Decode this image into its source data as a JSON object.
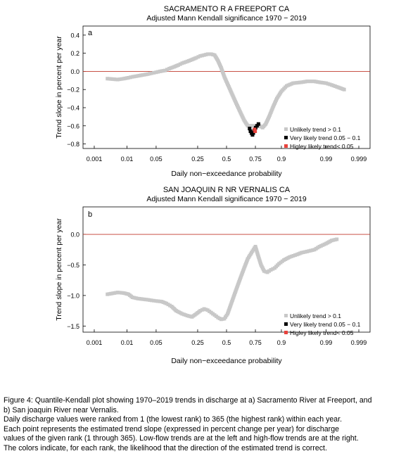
{
  "chart_data": [
    {
      "type": "scatter",
      "title": "SACRAMENTO R A FREEPORT CA",
      "subtitle": "Adjusted Mann Kendall significance  1970 − 2019",
      "panel_label": "a",
      "xlabel": "Daily non−exceedance probability",
      "ylabel": "Trend slope in percent per year",
      "x_scale": "probit",
      "xlim": [
        0.0004,
        0.9996
      ],
      "ylim": [
        -0.85,
        0.5
      ],
      "x_ticks": [
        0.001,
        0.01,
        0.05,
        0.25,
        0.5,
        0.75,
        0.9,
        0.99,
        0.999
      ],
      "x_tick_labels": [
        "0.001",
        "0.01",
        "0.05",
        "0.25",
        "0.5",
        "0.75",
        "0.9",
        "0.99",
        "0.999"
      ],
      "y_ticks": [
        -0.8,
        -0.6,
        -0.4,
        -0.2,
        0.0,
        0.2,
        0.4
      ],
      "y_tick_labels": [
        "−0.8",
        "−0.6",
        "−0.4",
        "−0.2",
        "0.0",
        "0.2",
        "0.4"
      ],
      "reference_line": 0,
      "legend_position": "bottom-right",
      "legend": [
        "Unlikely trend > 0.1",
        "Very likely trend 0.05 − 0.1",
        "Higley likely trend< 0.05"
      ],
      "series": [
        {
          "name": "Unlikely trend > 0.1",
          "color": "#c8c8c8",
          "x": [
            0.0027,
            0.0055,
            0.0082,
            0.011,
            0.014,
            0.019,
            0.025,
            0.033,
            0.04,
            0.05,
            0.06,
            0.075,
            0.09,
            0.11,
            0.13,
            0.15,
            0.18,
            0.21,
            0.24,
            0.27,
            0.3,
            0.33,
            0.36,
            0.39,
            0.42,
            0.45,
            0.48,
            0.51,
            0.54,
            0.57,
            0.6,
            0.63,
            0.66,
            0.69,
            0.78,
            0.8,
            0.82,
            0.84,
            0.86,
            0.88,
            0.9,
            0.92,
            0.94,
            0.96,
            0.97,
            0.98,
            0.985,
            0.99,
            0.993,
            0.995,
            0.997
          ],
          "y": [
            -0.08,
            -0.09,
            -0.08,
            -0.07,
            -0.06,
            -0.05,
            -0.04,
            -0.03,
            -0.02,
            -0.01,
            0.0,
            0.01,
            0.03,
            0.05,
            0.07,
            0.09,
            0.11,
            0.13,
            0.15,
            0.17,
            0.18,
            0.19,
            0.19,
            0.18,
            0.12,
            0.04,
            -0.06,
            -0.14,
            -0.22,
            -0.3,
            -0.38,
            -0.46,
            -0.54,
            -0.6,
            -0.6,
            -0.62,
            -0.58,
            -0.5,
            -0.4,
            -0.3,
            -0.22,
            -0.16,
            -0.13,
            -0.12,
            -0.11,
            -0.11,
            -0.12,
            -0.13,
            -0.15,
            -0.17,
            -0.2
          ]
        },
        {
          "name": "Very likely trend 0.05 − 0.1",
          "color": "#000000",
          "x": [
            0.705,
            0.712,
            0.72,
            0.728,
            0.734,
            0.742,
            0.752,
            0.762,
            0.772
          ],
          "y": [
            -0.63,
            -0.66,
            -0.68,
            -0.7,
            -0.68,
            -0.65,
            -0.62,
            -0.6,
            -0.58
          ]
        },
        {
          "name": "Higley likely trend< 0.05",
          "color": "#e8423c",
          "x": [
            0.744,
            0.748
          ],
          "y": [
            -0.64,
            -0.66
          ]
        }
      ]
    },
    {
      "type": "scatter",
      "title": "SAN JOAQUIN R NR VERNALIS CA",
      "subtitle": "Adjusted Mann Kendall significance  1970 − 2019",
      "panel_label": "b",
      "xlabel": "Daily non−exceedance probability",
      "ylabel": "Trend slope in percent per year",
      "x_scale": "probit",
      "xlim": [
        0.0004,
        0.9996
      ],
      "ylim": [
        -1.6,
        0.45
      ],
      "x_ticks": [
        0.001,
        0.01,
        0.05,
        0.25,
        0.5,
        0.75,
        0.9,
        0.99,
        0.999
      ],
      "x_tick_labels": [
        "0.001",
        "0.01",
        "0.05",
        "0.25",
        "0.5",
        "0.75",
        "0.9",
        "0.99",
        "0.999"
      ],
      "y_ticks": [
        -1.5,
        -1.0,
        -0.5,
        0.0
      ],
      "y_tick_labels": [
        "−1.5",
        "−1.0",
        "−0.5",
        "0.0"
      ],
      "reference_line": 0,
      "legend_position": "bottom-right",
      "legend": [
        "Unlikely trend > 0.1",
        "Very likely trend 0.05 − 0.1",
        "Higley likely trend< 0.05"
      ],
      "series": [
        {
          "name": "Unlikely trend > 0.1",
          "color": "#c8c8c8",
          "x": [
            0.0027,
            0.0055,
            0.0082,
            0.011,
            0.014,
            0.019,
            0.025,
            0.033,
            0.04,
            0.05,
            0.065,
            0.08,
            0.1,
            0.12,
            0.15,
            0.18,
            0.21,
            0.24,
            0.27,
            0.3,
            0.33,
            0.36,
            0.39,
            0.42,
            0.45,
            0.48,
            0.51,
            0.54,
            0.57,
            0.6,
            0.63,
            0.66,
            0.69,
            0.72,
            0.75,
            0.77,
            0.79,
            0.81,
            0.83,
            0.85,
            0.87,
            0.89,
            0.91,
            0.93,
            0.95,
            0.96,
            0.97,
            0.98,
            0.985,
            0.99,
            0.993,
            0.995
          ],
          "y": [
            -0.98,
            -0.95,
            -0.96,
            -0.98,
            -1.03,
            -1.05,
            -1.06,
            -1.07,
            -1.08,
            -1.09,
            -1.1,
            -1.13,
            -1.18,
            -1.25,
            -1.3,
            -1.33,
            -1.35,
            -1.3,
            -1.25,
            -1.22,
            -1.24,
            -1.28,
            -1.32,
            -1.36,
            -1.39,
            -1.38,
            -1.3,
            -1.15,
            -1.0,
            -0.85,
            -0.7,
            -0.55,
            -0.4,
            -0.3,
            -0.2,
            -0.35,
            -0.5,
            -0.6,
            -0.62,
            -0.58,
            -0.55,
            -0.48,
            -0.42,
            -0.37,
            -0.33,
            -0.3,
            -0.28,
            -0.25,
            -0.2,
            -0.15,
            -0.1,
            -0.08
          ]
        }
      ]
    }
  ],
  "caption": {
    "lines": [
      "Figure 4: Quantile-Kendall plot showing 1970–2019 trends in discharge at a) Sacramento River at Freeport, and",
      "b) San joaquin River near Vernalis.",
      "Daily discharge values were ranked from 1 (the lowest rank) to 365 (the highest rank) within each year.",
      "Each point represents the estimated trend slope (expressed in percent change per year) for discharge",
      "values of the given rank (1 through 365). Low-flow trends are at the left and high-flow trends are at the right.",
      "The colors indicate, for each rank, the likelihood that the direction of the estimated trend is correct."
    ]
  }
}
